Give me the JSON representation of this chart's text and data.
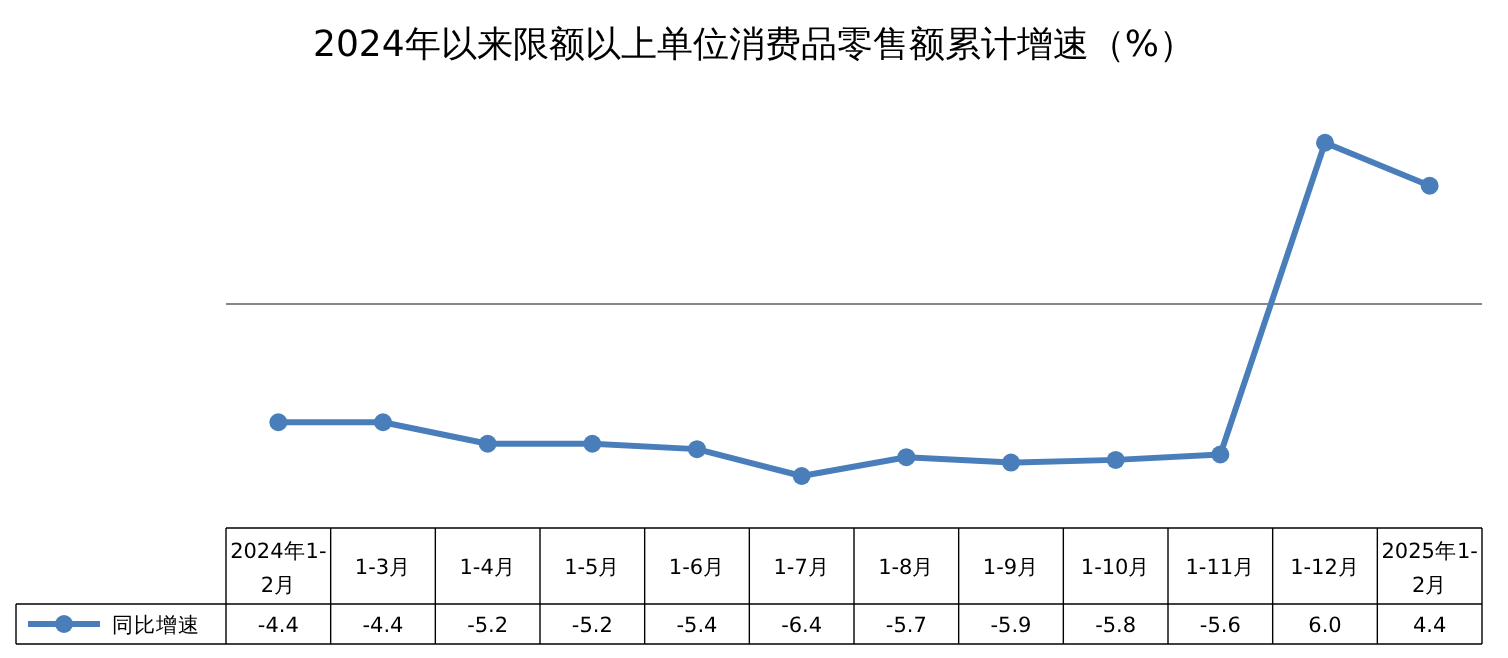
{
  "chart_data": {
    "type": "line",
    "title": "2024年以来限额以上单位消费品零售额累计增速（%）",
    "categories": [
      "2024年1-2月",
      "1-3月",
      "1-4月",
      "1-5月",
      "1-6月",
      "1-7月",
      "1-8月",
      "1-9月",
      "1-10月",
      "1-11月",
      "1-12月",
      "2025年1-2月"
    ],
    "series": [
      {
        "name": "同比增速",
        "color": "#4a7ebb",
        "values": [
          -4.4,
          -4.4,
          -5.2,
          -5.2,
          -5.4,
          -6.4,
          -5.7,
          -5.9,
          -5.8,
          -5.6,
          6.0,
          4.4
        ],
        "value_labels": [
          "-4.4",
          "-4.4",
          "-5.2",
          "-5.2",
          "-5.4",
          "-6.4",
          "-5.7",
          "-5.9",
          "-5.8",
          "-5.6",
          "6.0",
          "4.4"
        ]
      }
    ],
    "marker": "circle",
    "line_style": "solid",
    "legend": "bottom"
  }
}
